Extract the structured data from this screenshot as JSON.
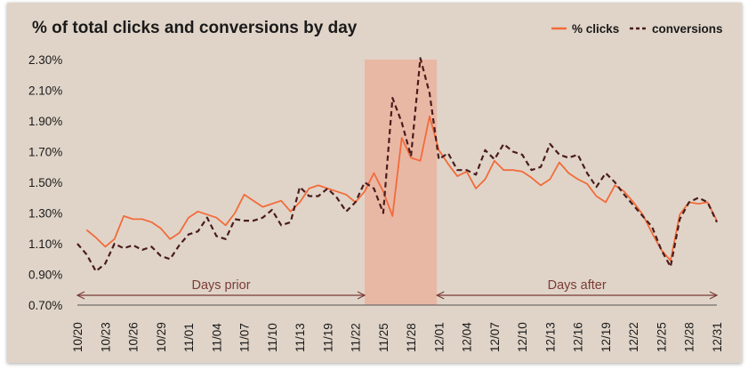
{
  "chart_data": {
    "type": "line",
    "title": "% of total clicks and conversions by day",
    "xlabel": "",
    "ylabel": "",
    "ylim": [
      0.7,
      2.3
    ],
    "yticks": [
      "0.70%",
      "0.90%",
      "1.10%",
      "1.30%",
      "1.50%",
      "1.70%",
      "1.90%",
      "2.10%",
      "2.30%"
    ],
    "ytick_values": [
      0.7,
      0.9,
      1.1,
      1.3,
      1.5,
      1.7,
      1.9,
      2.1,
      2.3
    ],
    "x_tick_labels": [
      "10/20",
      "10/23",
      "10/26",
      "10/29",
      "11/01",
      "11/04",
      "11/07",
      "11/10",
      "11/13",
      "11/19",
      "11/22",
      "11/25",
      "11/28",
      "12/01",
      "12/04",
      "12/07",
      "12/10",
      "12/13",
      "12/16",
      "12/19",
      "12/22",
      "12/25",
      "12/28",
      "12/31"
    ],
    "x_tick_every": 3,
    "grid": false,
    "legend": "top-right",
    "series": [
      {
        "name": "% clicks",
        "style": "solid",
        "color": "#f26b3a",
        "values": [
          null,
          1.19,
          1.14,
          1.08,
          1.13,
          1.28,
          1.26,
          1.26,
          1.24,
          1.2,
          1.13,
          1.17,
          1.27,
          1.31,
          1.29,
          1.27,
          1.22,
          1.3,
          1.42,
          1.38,
          1.34,
          1.36,
          1.38,
          1.31,
          1.37,
          1.46,
          1.48,
          1.46,
          1.44,
          1.42,
          1.37,
          1.44,
          1.56,
          1.44,
          1.28,
          1.79,
          1.66,
          1.64,
          1.93,
          1.71,
          1.62,
          1.54,
          1.57,
          1.46,
          1.52,
          1.64,
          1.58,
          1.58,
          1.57,
          1.53,
          1.48,
          1.52,
          1.63,
          1.56,
          1.52,
          1.49,
          1.41,
          1.37,
          1.48,
          1.44,
          1.37,
          1.29,
          1.17,
          1.06,
          0.99,
          1.29,
          1.37,
          1.36,
          1.37,
          1.25
        ]
      },
      {
        "name": "conversions",
        "style": "dashed",
        "color": "#4a1c1c",
        "values": [
          1.1,
          1.03,
          0.92,
          0.97,
          1.1,
          1.07,
          1.09,
          1.06,
          1.08,
          1.02,
          1.0,
          1.09,
          1.16,
          1.18,
          1.27,
          1.15,
          1.13,
          1.26,
          1.25,
          1.25,
          1.27,
          1.32,
          1.22,
          1.24,
          1.47,
          1.41,
          1.41,
          1.46,
          1.4,
          1.31,
          1.37,
          1.5,
          1.46,
          1.3,
          2.05,
          1.89,
          1.67,
          2.31,
          2.08,
          1.65,
          1.69,
          1.58,
          1.58,
          1.55,
          1.71,
          1.65,
          1.75,
          1.7,
          1.68,
          1.58,
          1.6,
          1.75,
          1.68,
          1.66,
          1.68,
          1.56,
          1.47,
          1.56,
          1.5,
          1.42,
          1.35,
          1.28,
          1.21,
          1.06,
          0.95,
          1.26,
          1.37,
          1.4,
          1.37,
          1.24
        ]
      }
    ],
    "highlight_band": {
      "from_label": "11/23",
      "to_label": "11/30",
      "color": "#e9b8a5"
    },
    "annotations": [
      {
        "text": "Days prior",
        "span": "start-to-band",
        "color": "#7a3b36"
      },
      {
        "text": "Days after",
        "span": "band-to-end",
        "color": "#7a3b36"
      }
    ]
  }
}
